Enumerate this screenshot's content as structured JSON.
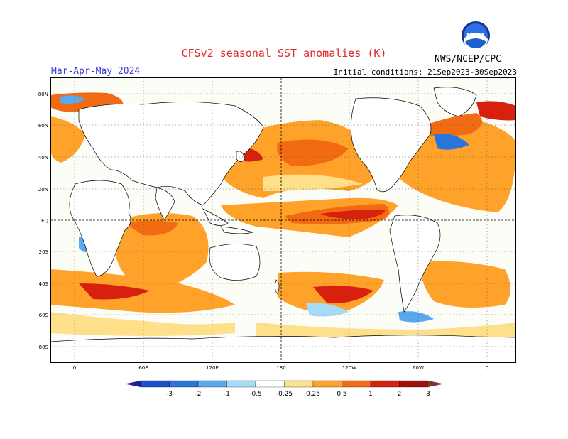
{
  "header": {
    "title": "CFSv2 seasonal SST anomalies (K)",
    "season": "Mar-Apr-May 2024",
    "initial_conditions": "Initial conditions: 21Sep2023-30Sep2023",
    "organization": "NWS/NCEP/CPC",
    "logo_text": "NOAA"
  },
  "map": {
    "lat_labels": [
      "80N",
      "60N",
      "40N",
      "20N",
      "EQ",
      "20S",
      "40S",
      "60S",
      "80S"
    ],
    "lon_labels": [
      "0",
      "60E",
      "120E",
      "180",
      "120W",
      "60W",
      "0"
    ]
  },
  "colorbar": {
    "labels": [
      "-3",
      "-2",
      "-1",
      "-0.5",
      "-0.25",
      "0.25",
      "0.5",
      "1",
      "2",
      "3"
    ],
    "colors": [
      "#2a1a9a",
      "#1c4fd0",
      "#2a74de",
      "#5aa8ee",
      "#a6dcf6",
      "#ffffff",
      "#ffe08a",
      "#ffa229",
      "#f26b12",
      "#d8200f",
      "#a2100c",
      "#7a3a30"
    ]
  }
}
